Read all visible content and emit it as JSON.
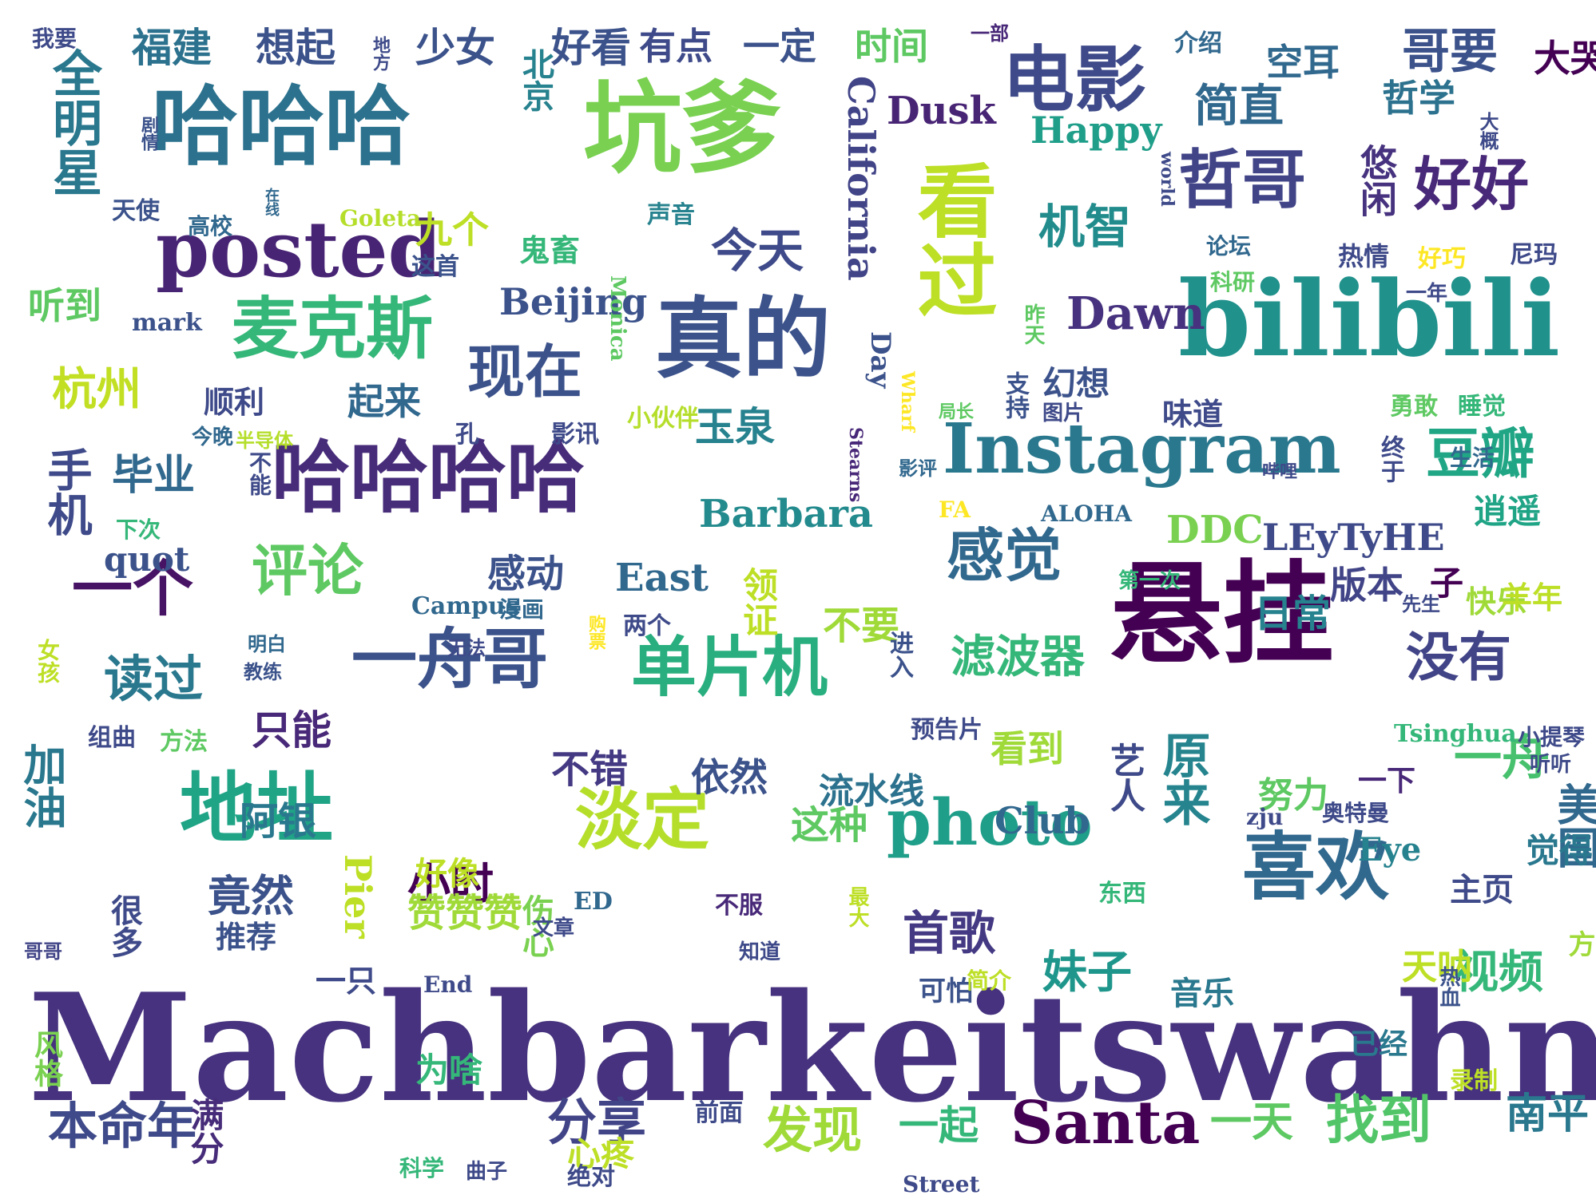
{
  "words": [
    {
      "text": "Machbarkeitswahn",
      "color": "#46327e"
    },
    {
      "text": "悬挂",
      "color": "#440154"
    },
    {
      "text": "bilibili",
      "color": "#21918c"
    },
    {
      "text": "坑爹",
      "color": "#7ad151"
    },
    {
      "text": "哈哈哈",
      "color": "#2c728e"
    },
    {
      "text": "真的",
      "color": "#3b528b"
    },
    {
      "text": "看过",
      "color": "#bddf26"
    },
    {
      "text": "哈哈哈哈",
      "color": "#472c7a"
    },
    {
      "text": "posted",
      "color": "#482475"
    },
    {
      "text": "Instagram",
      "color": "#2a788e"
    },
    {
      "text": "电影",
      "color": "#3e4a89"
    },
    {
      "text": "喜欢",
      "color": "#31688e"
    },
    {
      "text": "地址",
      "color": "#20a486"
    },
    {
      "text": "单片机",
      "color": "#29af7f"
    },
    {
      "text": "photo",
      "color": "#1f9e89"
    },
    {
      "text": "一舟哥",
      "color": "#3b528b"
    },
    {
      "text": "麦克斯",
      "color": "#35b779"
    },
    {
      "text": "淡定",
      "color": "#b5de2b"
    },
    {
      "text": "哲哥",
      "color": "#414487"
    },
    {
      "text": "好好",
      "color": "#482878"
    },
    {
      "text": "感觉",
      "color": "#31688e"
    },
    {
      "text": "Santa",
      "color": "#440154"
    },
    {
      "text": "现在",
      "color": "#3b528b"
    },
    {
      "text": "评论",
      "color": "#5ec962"
    },
    {
      "text": "豆瓣",
      "color": "#21a685"
    },
    {
      "text": "没有",
      "color": "#414487"
    },
    {
      "text": "全明星",
      "color": "#2a788e"
    },
    {
      "text": "California",
      "color": "#414487"
    },
    {
      "text": "Barbara",
      "color": "#238a8d"
    },
    {
      "text": "一个",
      "color": "#471365"
    },
    {
      "text": "原来",
      "color": "#25848e"
    },
    {
      "text": "一舟",
      "color": "#48c16e"
    },
    {
      "text": "哥要",
      "color": "#3b528b"
    },
    {
      "text": "机智",
      "color": "#228c8d"
    },
    {
      "text": "读过",
      "color": "#2a788e"
    },
    {
      "text": "找到",
      "color": "#52c569"
    },
    {
      "text": "发现",
      "color": "#a0da39"
    },
    {
      "text": "首歌",
      "color": "#443983"
    },
    {
      "text": "妹子",
      "color": "#1f968b"
    },
    {
      "text": "本命年",
      "color": "#3e4a89"
    },
    {
      "text": "分享",
      "color": "#414487"
    },
    {
      "text": "视频",
      "color": "#35b779"
    },
    {
      "text": "南平",
      "color": "#2a788e"
    },
    {
      "text": "一天",
      "color": "#5ec962"
    },
    {
      "text": "一起",
      "color": "#35b779"
    },
    {
      "text": "加油",
      "color": "#2a788e"
    },
    {
      "text": "简直",
      "color": "#31688e"
    },
    {
      "text": "Dawn",
      "color": "#46327e"
    },
    {
      "text": "滤波器",
      "color": "#35b779"
    },
    {
      "text": "竟然",
      "color": "#3b528b"
    },
    {
      "text": "小时",
      "color": "#440154"
    },
    {
      "text": "杭州",
      "color": "#c2df23"
    },
    {
      "text": "手机",
      "color": "#3e4a89"
    },
    {
      "text": "今天",
      "color": "#3e4a89"
    },
    {
      "text": "福建",
      "color": "#2c728e"
    },
    {
      "text": "想起",
      "color": "#3b528b"
    },
    {
      "text": "少女",
      "color": "#3b528b"
    },
    {
      "text": "好看",
      "color": "#3b528b"
    },
    {
      "text": "有点",
      "color": "#3e4a89"
    },
    {
      "text": "一定",
      "color": "#3b528b"
    },
    {
      "text": "时间",
      "color": "#5ec962"
    },
    {
      "text": "空耳",
      "color": "#31688e"
    },
    {
      "text": "北京",
      "color": "#26828e"
    },
    {
      "text": "Dusk",
      "color": "#482475"
    },
    {
      "text": "Happy",
      "color": "#1f9e89"
    },
    {
      "text": "哲学",
      "color": "#2c728e"
    },
    {
      "text": "大哭",
      "color": "#440154"
    },
    {
      "text": "悠闲",
      "color": "#46327e"
    },
    {
      "text": "鬼畜",
      "color": "#35b779"
    },
    {
      "text": "九个",
      "color": "#bddf26"
    },
    {
      "text": "Beijing",
      "color": "#3b528b"
    },
    {
      "text": "听到",
      "color": "#5ec962"
    },
    {
      "text": "起来",
      "color": "#31688e"
    },
    {
      "text": "顺利",
      "color": "#3e4a89"
    },
    {
      "text": "玉泉",
      "color": "#26828e"
    },
    {
      "text": "Day",
      "color": "#3b528b"
    },
    {
      "text": "毕业",
      "color": "#31688e"
    },
    {
      "text": "幻想",
      "color": "#3b528b"
    },
    {
      "text": "味道",
      "color": "#3e4a89"
    },
    {
      "text": "DDC",
      "color": "#7ad151"
    },
    {
      "text": "LEyTyHE",
      "color": "#3e4a89"
    },
    {
      "text": "版本",
      "color": "#414487"
    },
    {
      "text": "子",
      "color": "#440154"
    },
    {
      "text": "快乐",
      "color": "#a0da39"
    },
    {
      "text": "羊年",
      "color": "#bddf26"
    },
    {
      "text": "East",
      "color": "#31688e"
    },
    {
      "text": "感动",
      "color": "#3b528b"
    },
    {
      "text": "领证",
      "color": "#bddf26"
    },
    {
      "text": "不要",
      "color": "#a0da39"
    },
    {
      "text": "只能",
      "color": "#482878"
    },
    {
      "text": "不错",
      "color": "#443983"
    },
    {
      "text": "依然",
      "color": "#3b528b"
    },
    {
      "text": "流水线",
      "color": "#2c728e"
    },
    {
      "text": "Club",
      "color": "#31688e"
    },
    {
      "text": "艺人",
      "color": "#3e4a89"
    },
    {
      "text": "阿银",
      "color": "#2a788e"
    },
    {
      "text": "看到",
      "color": "#a0da39"
    },
    {
      "text": "赞赞赞",
      "color": "#a0da39"
    },
    {
      "text": "这种",
      "color": "#5ec962"
    },
    {
      "text": "日常",
      "color": "#26828e"
    },
    {
      "text": "逍遥",
      "color": "#20a486"
    },
    {
      "text": "天呐",
      "color": "#bddf26"
    },
    {
      "text": "美国",
      "color": "#31688e"
    },
    {
      "text": "已经",
      "color": "#2a788e"
    },
    {
      "text": "音乐",
      "color": "#2a788e"
    },
    {
      "text": "为啥",
      "color": "#35b779"
    },
    {
      "text": "心疼",
      "color": "#bddf26"
    },
    {
      "text": "满分",
      "color": "#472c7a"
    },
    {
      "text": "努力",
      "color": "#5ec962"
    },
    {
      "text": "一下",
      "color": "#482878"
    },
    {
      "text": "Eye",
      "color": "#26828e"
    },
    {
      "text": "觉得",
      "color": "#2a788e"
    },
    {
      "text": "方",
      "color": "#a0da39"
    },
    {
      "text": "主页",
      "color": "#3e4a89"
    },
    {
      "text": "很多",
      "color": "#3e4a89"
    },
    {
      "text": "quot",
      "color": "#3b528b"
    },
    {
      "text": "Pier",
      "color": "#bddf26"
    },
    {
      "text": "好像",
      "color": "#bddf26"
    },
    {
      "text": "伤心",
      "color": "#7ad151"
    },
    {
      "text": "推荐",
      "color": "#3b528b"
    },
    {
      "text": "一只",
      "color": "#3e4a89"
    },
    {
      "text": "可怕",
      "color": "#3b528b"
    },
    {
      "text": "风格",
      "color": "#7ad151"
    },
    {
      "text": "哥哥",
      "color": "#414487"
    },
    {
      "text": "我要",
      "color": "#3e4a89"
    },
    {
      "text": "剧情",
      "color": "#3b528b"
    },
    {
      "text": "地方",
      "color": "#3e4a89"
    },
    {
      "text": "一部",
      "color": "#482878"
    },
    {
      "text": "介绍",
      "color": "#31688e"
    },
    {
      "text": "大概",
      "color": "#3e4a89"
    },
    {
      "text": "天使",
      "color": "#3b528b"
    },
    {
      "text": "高校",
      "color": "#31688e"
    },
    {
      "text": "在线",
      "color": "#31688e"
    },
    {
      "text": "Goleta",
      "color": "#b5de2b"
    },
    {
      "text": "这首",
      "color": "#3b528b"
    },
    {
      "text": "声音",
      "color": "#26828e"
    },
    {
      "text": "world",
      "color": "#3e4a89"
    },
    {
      "text": "论坛",
      "color": "#31688e"
    },
    {
      "text": "热情",
      "color": "#3e4a89"
    },
    {
      "text": "好巧",
      "color": "#fde725"
    },
    {
      "text": "尼玛",
      "color": "#3e4a89"
    },
    {
      "text": "科研",
      "color": "#5ec962"
    },
    {
      "text": "一年",
      "color": "#3e4a89"
    },
    {
      "text": "mark",
      "color": "#3b528b"
    },
    {
      "text": "Monica",
      "color": "#5ec962"
    },
    {
      "text": "昨天",
      "color": "#5ec962"
    },
    {
      "text": "支持",
      "color": "#3b528b"
    },
    {
      "text": "局长",
      "color": "#5ec962"
    },
    {
      "text": "图片",
      "color": "#3e4a89"
    },
    {
      "text": "勇敢",
      "color": "#5ec962"
    },
    {
      "text": "睡觉",
      "color": "#35b779"
    },
    {
      "text": "今晚",
      "color": "#31688e"
    },
    {
      "text": "半导体",
      "color": "#b5de2b"
    },
    {
      "text": "孔",
      "color": "#3e4a89"
    },
    {
      "text": "影讯",
      "color": "#3e4a89"
    },
    {
      "text": "小伙伴",
      "color": "#b5de2b"
    },
    {
      "text": "Wharf",
      "color": "#fde725"
    },
    {
      "text": "Stearns",
      "color": "#482878"
    },
    {
      "text": "影评",
      "color": "#31688e"
    },
    {
      "text": "下次",
      "color": "#35b779"
    },
    {
      "text": "不能",
      "color": "#3e4a89"
    },
    {
      "text": "FA",
      "color": "#fde725"
    },
    {
      "text": "ALOHA",
      "color": "#31688e"
    },
    {
      "text": "哔哩",
      "color": "#3e4a89"
    },
    {
      "text": "终于",
      "color": "#3e4a89"
    },
    {
      "text": "生活",
      "color": "#31688e"
    },
    {
      "text": "第一次",
      "color": "#35b779"
    },
    {
      "text": "先生",
      "color": "#3e4a89"
    },
    {
      "text": "Campus",
      "color": "#31688e"
    },
    {
      "text": "漫画",
      "color": "#31688e"
    },
    {
      "text": "购票",
      "color": "#fde725"
    },
    {
      "text": "两个",
      "color": "#3e4a89"
    },
    {
      "text": "进入",
      "color": "#3b528b"
    },
    {
      "text": "明白",
      "color": "#31688e"
    },
    {
      "text": "无法",
      "color": "#3e4a89"
    },
    {
      "text": "教练",
      "color": "#3b528b"
    },
    {
      "text": "女孩",
      "color": "#bddf26"
    },
    {
      "text": "组曲",
      "color": "#3e4a89"
    },
    {
      "text": "方法",
      "color": "#5ec962"
    },
    {
      "text": "预告片",
      "color": "#3e4a89"
    },
    {
      "text": "Tsinghua",
      "color": "#35b779"
    },
    {
      "text": "小提琴",
      "color": "#3e4a89"
    },
    {
      "text": "听听",
      "color": "#3e4a89"
    },
    {
      "text": "zju",
      "color": "#3e4a89"
    },
    {
      "text": "奥特曼",
      "color": "#3e4a89"
    },
    {
      "text": "东西",
      "color": "#35b779"
    },
    {
      "text": "ED",
      "color": "#31688e"
    },
    {
      "text": "不服",
      "color": "#482878"
    },
    {
      "text": "文章",
      "color": "#3e4a89"
    },
    {
      "text": "最大",
      "color": "#bddf26"
    },
    {
      "text": "知道",
      "color": "#3e4a89"
    },
    {
      "text": "End",
      "color": "#3e4a89"
    },
    {
      "text": "简介",
      "color": "#bddf26"
    },
    {
      "text": "热血",
      "color": "#3b528b"
    },
    {
      "text": "录制",
      "color": "#bddf26"
    },
    {
      "text": "前面",
      "color": "#3e4a89"
    },
    {
      "text": "科学",
      "color": "#35b779"
    },
    {
      "text": "曲子",
      "color": "#3e4a89"
    },
    {
      "text": "绝对",
      "color": "#3e4a89"
    },
    {
      "text": "Street",
      "color": "#3e4a89"
    }
  ]
}
